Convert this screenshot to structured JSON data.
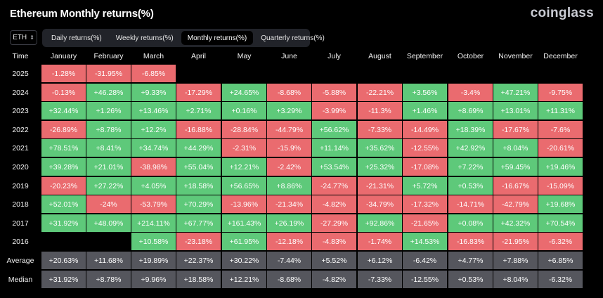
{
  "header": {
    "title": "Ethereum Monthly returns(%)",
    "brand": "coinglass"
  },
  "controls": {
    "coin": "ETH",
    "tabs": [
      {
        "label": "Daily returns(%)",
        "active": false
      },
      {
        "label": "Weekly returns(%)",
        "active": false
      },
      {
        "label": "Monthly returns(%)",
        "active": true
      },
      {
        "label": "Quarterly returns(%)",
        "active": false
      }
    ]
  },
  "colors": {
    "positive": "#5ec97a",
    "negative": "#ea6b6f",
    "summary": "#55565d",
    "background": "#000000"
  },
  "chart_data": {
    "type": "table",
    "title": "Ethereum Monthly returns(%)",
    "time_label": "Time",
    "columns": [
      "January",
      "February",
      "March",
      "April",
      "May",
      "June",
      "July",
      "August",
      "September",
      "October",
      "November",
      "December"
    ],
    "rows": [
      {
        "label": "2025",
        "values": [
          "-1.28%",
          "-31.95%",
          "-6.85%",
          "",
          "",
          "",
          "",
          "",
          "",
          "",
          "",
          ""
        ]
      },
      {
        "label": "2024",
        "values": [
          "-0.13%",
          "+46.28%",
          "+9.33%",
          "-17.29%",
          "+24.65%",
          "-8.68%",
          "-5.88%",
          "-22.21%",
          "+3.56%",
          "-3.4%",
          "+47.21%",
          "-9.75%"
        ]
      },
      {
        "label": "2023",
        "values": [
          "+32.44%",
          "+1.26%",
          "+13.46%",
          "+2.71%",
          "+0.16%",
          "+3.29%",
          "-3.99%",
          "-11.3%",
          "+1.46%",
          "+8.69%",
          "+13.01%",
          "+11.31%"
        ]
      },
      {
        "label": "2022",
        "values": [
          "-26.89%",
          "+8.78%",
          "+12.2%",
          "-16.88%",
          "-28.84%",
          "-44.79%",
          "+56.62%",
          "-7.33%",
          "-14.49%",
          "+18.39%",
          "-17.67%",
          "-7.6%"
        ]
      },
      {
        "label": "2021",
        "values": [
          "+78.51%",
          "+8.41%",
          "+34.74%",
          "+44.29%",
          "-2.31%",
          "-15.9%",
          "+11.14%",
          "+35.62%",
          "-12.55%",
          "+42.92%",
          "+8.04%",
          "-20.61%"
        ]
      },
      {
        "label": "2020",
        "values": [
          "+39.28%",
          "+21.01%",
          "-38.98%",
          "+55.04%",
          "+12.21%",
          "-2.42%",
          "+53.54%",
          "+25.32%",
          "-17.08%",
          "+7.22%",
          "+59.45%",
          "+19.46%"
        ]
      },
      {
        "label": "2019",
        "values": [
          "-20.23%",
          "+27.22%",
          "+4.05%",
          "+18.58%",
          "+56.65%",
          "+8.86%",
          "-24.77%",
          "-21.31%",
          "+5.72%",
          "+0.53%",
          "-16.67%",
          "-15.09%"
        ]
      },
      {
        "label": "2018",
        "values": [
          "+52.01%",
          "-24%",
          "-53.79%",
          "+70.29%",
          "-13.96%",
          "-21.34%",
          "-4.82%",
          "-34.79%",
          "-17.32%",
          "-14.71%",
          "-42.79%",
          "+19.68%"
        ]
      },
      {
        "label": "2017",
        "values": [
          "+31.92%",
          "+48.09%",
          "+214.11%",
          "+67.77%",
          "+161.43%",
          "+26.19%",
          "-27.29%",
          "+92.86%",
          "-21.65%",
          "+0.08%",
          "+42.32%",
          "+70.54%"
        ]
      },
      {
        "label": "2016",
        "values": [
          "",
          "",
          "+10.58%",
          "-23.18%",
          "+61.95%",
          "-12.18%",
          "-4.83%",
          "-1.74%",
          "+14.53%",
          "-16.83%",
          "-21.95%",
          "-6.32%"
        ]
      }
    ],
    "summary_rows": [
      {
        "label": "Average",
        "values": [
          "+20.63%",
          "+11.68%",
          "+19.89%",
          "+22.37%",
          "+30.22%",
          "-7.44%",
          "+5.52%",
          "+6.12%",
          "-6.42%",
          "+4.77%",
          "+7.88%",
          "+6.85%"
        ]
      },
      {
        "label": "Median",
        "values": [
          "+31.92%",
          "+8.78%",
          "+9.96%",
          "+18.58%",
          "+12.21%",
          "-8.68%",
          "-4.82%",
          "-7.33%",
          "-12.55%",
          "+0.53%",
          "+8.04%",
          "-6.32%"
        ]
      }
    ]
  }
}
